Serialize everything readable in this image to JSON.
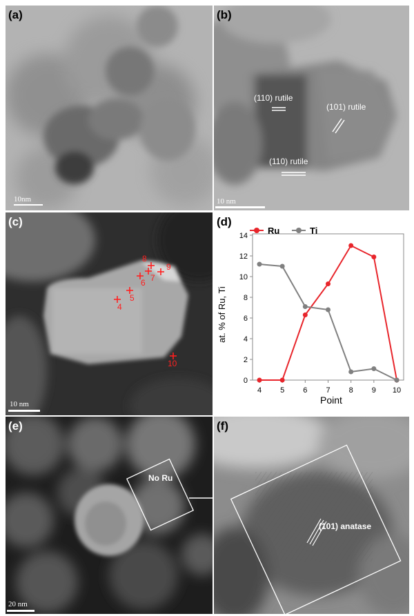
{
  "panels": {
    "a": {
      "label": "(a)",
      "scale": "10nm"
    },
    "b": {
      "label": "(b)",
      "scale": "10 nm",
      "annotations": [
        "(110) rutile",
        "(101) rutile",
        "(110) rutile"
      ]
    },
    "c": {
      "label": "(c)",
      "scale": "10 nm",
      "points": [
        "4",
        "5",
        "6",
        "7",
        "8",
        "9",
        "10"
      ]
    },
    "d": {
      "label": "(d)"
    },
    "e": {
      "label": "(e)",
      "scale": "20 nm",
      "box_label": "No Ru"
    },
    "f": {
      "label": "(f)",
      "annotation": "(101) anatase"
    }
  },
  "colors": {
    "ru": "#e8252b",
    "ti": "#808080"
  },
  "chart_data": {
    "type": "line",
    "x": [
      4,
      5,
      6,
      7,
      8,
      9,
      10
    ],
    "series": [
      {
        "name": "Ru",
        "values": [
          0,
          0,
          6.3,
          9.3,
          13.0,
          11.9,
          0
        ]
      },
      {
        "name": "Ti",
        "values": [
          11.2,
          11.0,
          7.1,
          6.8,
          0.8,
          1.1,
          0
        ]
      }
    ],
    "xlabel": "Point",
    "ylabel": "at. % of Ru, Ti",
    "xlim": [
      4,
      10
    ],
    "ylim": [
      0,
      14
    ],
    "yticks": [
      0,
      2,
      4,
      6,
      8,
      10,
      12,
      14
    ],
    "xticks": [
      4,
      5,
      6,
      7,
      8,
      9,
      10
    ],
    "legend_position": "top-left",
    "grid": false
  }
}
